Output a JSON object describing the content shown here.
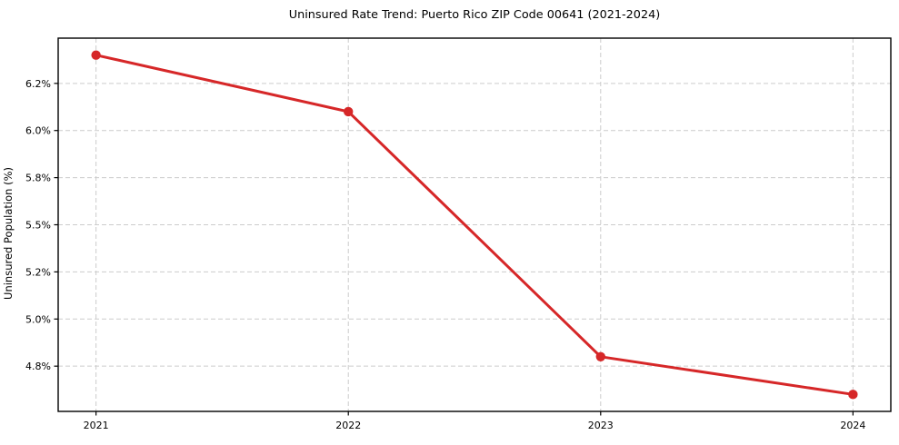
{
  "chart_data": {
    "type": "line",
    "title": "Uninsured Rate Trend: Puerto Rico ZIP Code 00641 (2021-2024)",
    "xlabel": "",
    "ylabel": "Uninsured Population (%)",
    "x": [
      2021,
      2022,
      2023,
      2024
    ],
    "series": [
      {
        "name": "Uninsured rate",
        "values": [
          6.4,
          6.1,
          4.8,
          4.6
        ]
      }
    ],
    "values": [
      6.4,
      6.1,
      4.8,
      4.6
    ],
    "xlim": [
      2020.85,
      2024.15
    ],
    "ylim": [
      4.51,
      6.49
    ],
    "xticks": [
      {
        "value": 2021,
        "label": "2021"
      },
      {
        "value": 2022,
        "label": "2022"
      },
      {
        "value": 2023,
        "label": "2023"
      },
      {
        "value": 2024,
        "label": "2024"
      }
    ],
    "yticks": [
      {
        "value": 4.75,
        "label": "4.8%"
      },
      {
        "value": 5.0,
        "label": "5.0%"
      },
      {
        "value": 5.25,
        "label": "5.2%"
      },
      {
        "value": 5.5,
        "label": "5.5%"
      },
      {
        "value": 5.75,
        "label": "5.8%"
      },
      {
        "value": 6.0,
        "label": "6.0%"
      },
      {
        "value": 6.25,
        "label": "6.2%"
      }
    ],
    "grid": true,
    "legend": "none",
    "line_color": "#d62728",
    "grid_color": "#cccccc",
    "spine_color": "#000000",
    "text_color": "#000000",
    "marker": "circle"
  }
}
